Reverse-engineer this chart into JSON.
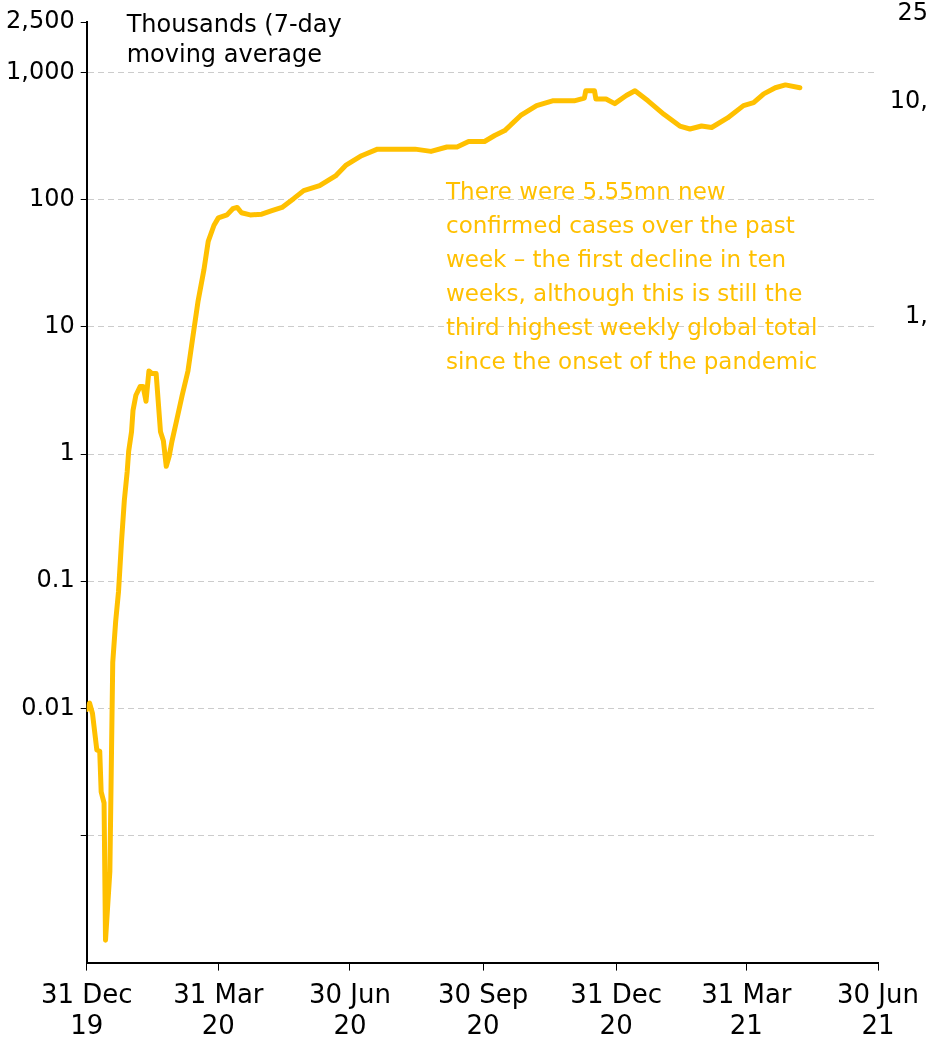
{
  "chart_data": {
    "type": "line",
    "ylabel": "Thousands (7-day moving average",
    "annotations": [
      "There were 5.55mn new confirmed cases over the past week – the first decline in ten weeks, although this is still the third highest weekly global total since the onset of the pandemic",
      "25",
      "10,",
      "1,"
    ],
    "x": [
      "2019-12-31",
      "2020-01-02",
      "2020-01-04",
      "2020-01-07",
      "2020-01-09",
      "2020-01-10",
      "2020-01-12",
      "2020-01-13",
      "2020-01-16",
      "2020-01-18",
      "2020-01-20",
      "2020-01-22",
      "2020-01-24",
      "2020-01-26",
      "2020-01-28",
      "2020-01-29",
      "2020-01-31",
      "2020-02-01",
      "2020-02-03",
      "2020-02-06",
      "2020-02-08",
      "2020-02-10",
      "2020-02-12",
      "2020-02-14",
      "2020-02-17",
      "2020-02-20",
      "2020-02-22",
      "2020-02-24",
      "2020-02-26",
      "2020-02-28",
      "2020-03-02",
      "2020-03-06",
      "2020-03-10",
      "2020-03-13",
      "2020-03-17",
      "2020-03-21",
      "2020-03-24",
      "2020-03-28",
      "2020-03-31",
      "2020-04-06",
      "2020-04-10",
      "2020-04-13",
      "2020-04-16",
      "2020-04-22",
      "2020-04-30",
      "2020-05-07",
      "2020-05-14",
      "2020-05-22",
      "2020-05-29",
      "2020-06-09",
      "2020-06-20",
      "2020-06-27",
      "2020-07-08",
      "2020-07-19",
      "2020-08-14",
      "2020-08-25",
      "2020-09-05",
      "2020-09-12",
      "2020-09-20",
      "2020-10-01",
      "2020-10-08",
      "2020-10-15",
      "2020-10-26",
      "2020-11-06",
      "2020-11-17",
      "2020-12-02",
      "2020-12-09",
      "2020-12-10",
      "2020-12-16",
      "2020-12-17",
      "2020-12-24",
      "2020-12-30",
      "2021-01-07",
      "2021-01-13",
      "2021-01-22",
      "2021-02-02",
      "2021-02-13",
      "2021-02-20",
      "2021-02-28",
      "2021-03-07",
      "2021-03-18",
      "2021-03-29",
      "2021-04-05",
      "2021-04-12",
      "2021-04-20",
      "2021-04-27",
      "2021-05-07"
    ],
    "series": [
      {
        "color": "#ffc000",
        "values": [
          0.0098,
          0.011,
          0.0091,
          0.0047,
          0.0046,
          0.0022,
          0.0018,
          0.00015,
          0.00052,
          0.023,
          0.048,
          0.083,
          0.2,
          0.43,
          0.73,
          1.05,
          1.5,
          2.2,
          2.9,
          3.4,
          3.4,
          2.6,
          4.5,
          4.3,
          4.3,
          1.5,
          1.27,
          0.8,
          0.96,
          1.27,
          1.8,
          2.9,
          4.5,
          7.8,
          16,
          28,
          47,
          63,
          72,
          76,
          85,
          87,
          79,
          76,
          77,
          82,
          87,
          102,
          118,
          129,
          154,
          186,
          222,
          250,
          250,
          240,
          260,
          260,
          287,
          287,
          320,
          350,
          460,
          550,
          600,
          600,
          630,
          720,
          720,
          620,
          620,
          570,
          660,
          720,
          600,
          470,
          380,
          360,
          380,
          370,
          440,
          550,
          580,
          680,
          760,
          800,
          760
        ]
      }
    ],
    "log": "y",
    "ylim": [
      0.0001,
      2500
    ],
    "yticks": [
      {
        "value": 2500,
        "label": "2,500"
      },
      {
        "value": 1000,
        "label": "1,000"
      },
      100,
      10,
      1,
      0.1,
      0.01,
      {
        "value": 0.001,
        "label": null
      }
    ],
    "xlim": [
      "2019-12-31",
      "2021-06-30"
    ],
    "xticks": [
      {
        "value": "2019-12-31",
        "label": "31 Dec 19"
      },
      {
        "value": "2020-03-31",
        "label": "31 Mar 20"
      },
      {
        "value": "2020-06-30",
        "label": "30 Jun 20"
      },
      {
        "value": "2020-09-30",
        "label": "30 Sep 20"
      },
      {
        "value": "2020-12-31",
        "label": "31 Dec 20"
      },
      {
        "value": "2021-03-31",
        "label": "31 Mar 21"
      },
      {
        "value": "2021-06-30",
        "label": "30 Jun 21"
      }
    ],
    "grid": "y",
    "legend": false,
    "marker": "none",
    "line_style": "solid"
  }
}
